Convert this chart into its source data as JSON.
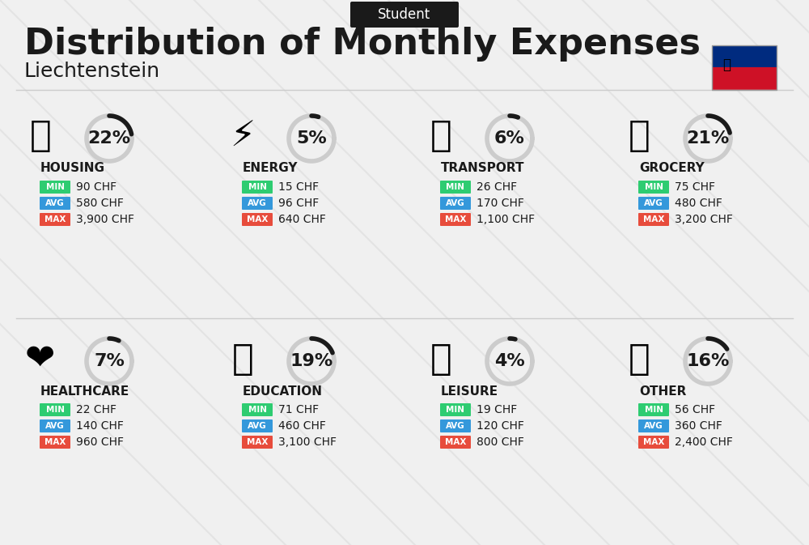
{
  "title": "Distribution of Monthly Expenses",
  "subtitle": "Liechtenstein",
  "header_tag": "Student",
  "bg_color": "#f0f0f0",
  "categories": [
    {
      "name": "HOUSING",
      "percent": 22,
      "min": "90 CHF",
      "avg": "580 CHF",
      "max": "3,900 CHF",
      "icon": "🏢",
      "row": 0,
      "col": 0
    },
    {
      "name": "ENERGY",
      "percent": 5,
      "min": "15 CHF",
      "avg": "96 CHF",
      "max": "640 CHF",
      "icon": "⚡",
      "row": 0,
      "col": 1
    },
    {
      "name": "TRANSPORT",
      "percent": 6,
      "min": "26 CHF",
      "avg": "170 CHF",
      "max": "1,100 CHF",
      "icon": "🚌",
      "row": 0,
      "col": 2
    },
    {
      "name": "GROCERY",
      "percent": 21,
      "min": "75 CHF",
      "avg": "480 CHF",
      "max": "3,200 CHF",
      "icon": "🛒",
      "row": 0,
      "col": 3
    },
    {
      "name": "HEALTHCARE",
      "percent": 7,
      "min": "22 CHF",
      "avg": "140 CHF",
      "max": "960 CHF",
      "icon": "❤️",
      "row": 1,
      "col": 0
    },
    {
      "name": "EDUCATION",
      "percent": 19,
      "min": "71 CHF",
      "avg": "460 CHF",
      "max": "3,100 CHF",
      "icon": "🎓",
      "row": 1,
      "col": 1
    },
    {
      "name": "LEISURE",
      "percent": 4,
      "min": "19 CHF",
      "avg": "120 CHF",
      "max": "800 CHF",
      "icon": "🛍️",
      "row": 1,
      "col": 2
    },
    {
      "name": "OTHER",
      "percent": 16,
      "min": "56 CHF",
      "avg": "360 CHF",
      "max": "2,400 CHF",
      "icon": "💰",
      "row": 1,
      "col": 3
    }
  ],
  "min_color": "#2ecc71",
  "avg_color": "#3498db",
  "max_color": "#e74c3c",
  "label_text_color": "#ffffff",
  "value_text_color": "#1a1a1a",
  "category_text_color": "#1a1a1a",
  "arc_color": "#1a1a1a",
  "arc_bg_color": "#cccccc",
  "percent_fontsize": 18,
  "category_fontsize": 11,
  "value_fontsize": 10,
  "flag_colors": [
    "#002B7F",
    "#CE1126"
  ],
  "diagonal_line_color": "#d8d8d8"
}
